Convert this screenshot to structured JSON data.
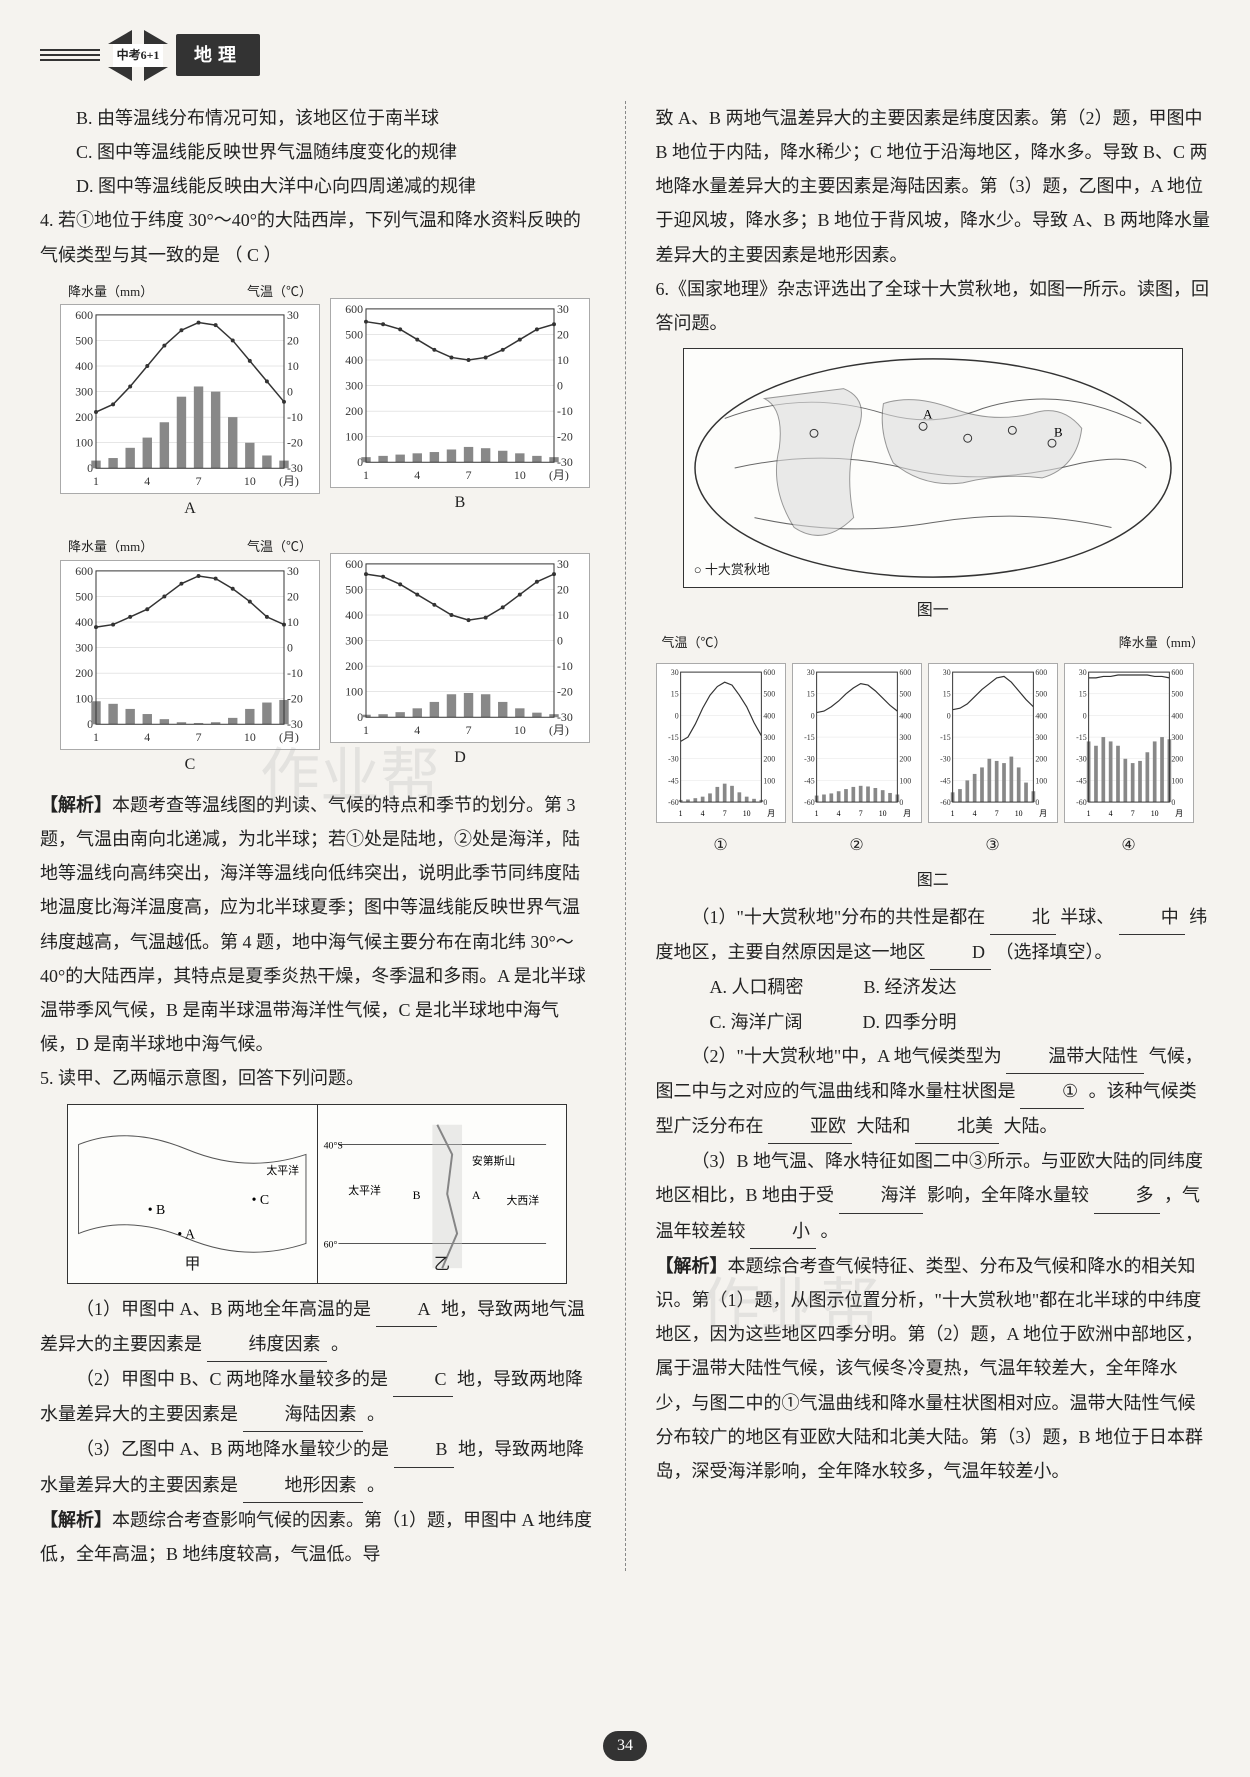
{
  "header": {
    "logo_text": "中考6+1",
    "subject": "地理"
  },
  "left": {
    "optB": "B. 由等温线分布情况可知，该地区位于南半球",
    "optC": "C. 图中等温线能反映世界气温随纬度变化的规律",
    "optD": "D. 图中等温线能反映由大洋中心向四周递减的规律",
    "q4": "4. 若①地位于纬度 30°～40°的大陆西岸，下列气温和降水资料反映的气候类型与其一致的是",
    "q4_answer": "（ C ）",
    "charts": {
      "precip_label": "降水量（mm）",
      "temp_label": "气温（℃）",
      "month_label": "月",
      "y_precip": [
        0,
        100,
        200,
        300,
        400,
        500,
        600
      ],
      "y_temp": [
        -30,
        -20,
        -10,
        0,
        10,
        20,
        30
      ],
      "x_months": [
        1,
        4,
        7,
        10
      ],
      "labels": [
        "A",
        "B",
        "C",
        "D"
      ],
      "A": {
        "precip": [
          30,
          40,
          80,
          120,
          180,
          280,
          320,
          300,
          200,
          100,
          50,
          30
        ],
        "temp": [
          -8,
          -5,
          2,
          10,
          18,
          24,
          27,
          26,
          20,
          12,
          4,
          -4
        ]
      },
      "B": {
        "precip": [
          20,
          25,
          30,
          35,
          40,
          50,
          60,
          55,
          45,
          35,
          25,
          20
        ],
        "temp": [
          25,
          24,
          22,
          18,
          14,
          11,
          10,
          11,
          14,
          18,
          22,
          24
        ]
      },
      "C": {
        "precip": [
          90,
          80,
          60,
          40,
          20,
          8,
          5,
          8,
          25,
          60,
          85,
          95
        ],
        "temp": [
          8,
          9,
          12,
          15,
          20,
          25,
          28,
          27,
          23,
          18,
          12,
          9
        ]
      },
      "D": {
        "precip": [
          10,
          12,
          20,
          35,
          60,
          90,
          95,
          90,
          60,
          35,
          18,
          12
        ],
        "temp": [
          26,
          25,
          22,
          18,
          14,
          10,
          8,
          9,
          13,
          18,
          23,
          26
        ]
      },
      "colors": {
        "bar": "#888888",
        "line": "#333333",
        "grid": "#cccccc",
        "bg": "#ffffff"
      }
    },
    "analysis_label": "【解析】",
    "analysis4": "本题考查等温线图的判读、气候的特点和季节的划分。第 3 题，气温由南向北递减，为北半球；若①处是陆地，②处是海洋，陆地等温线向高纬突出，海洋等温线向低纬突出，说明此季节同纬度陆地温度比海洋温度高，应为北半球夏季；图中等温线能反映世界气温纬度越高，气温越低。第 4 题，地中海气候主要分布在南北纬 30°～40°的大陆西岸，其特点是夏季炎热干燥，冬季温和多雨。A 是北半球温带季风气候，B 是南半球温带海洋性气候，C 是北半球地中海气候，D 是南半球地中海气候。",
    "q5": "5. 读甲、乙两幅示意图，回答下列问题。",
    "map_jia": "甲",
    "map_yi": "乙",
    "q5_1": "（1）甲图中 A、B 两地全年高温的是",
    "q5_1_ans": "A",
    "q5_1_tail": "地，导致两地气温差异大的主要因素是",
    "q5_1_ans2": "纬度因素",
    "q5_1_period": "。",
    "q5_2": "（2）甲图中 B、C 两地降水量较多的是",
    "q5_2_ans": "C",
    "q5_2_tail": "地，导致两地降水量差异大的主要因素是",
    "q5_2_ans2": "海陆因素",
    "q5_2_period": "。",
    "q5_3": "（3）乙图中 A、B 两地降水量较少的是",
    "q5_3_ans": "B",
    "q5_3_tail": "地，导致两地降水量差异大的主要因素是",
    "q5_3_ans2": "地形因素",
    "q5_3_period": "。",
    "analysis5_label": "【解析】",
    "analysis5": "本题综合考查影响气候的因素。第（1）题，甲图中 A 地纬度低，全年高温；B 地纬度较高，气温低。导"
  },
  "right": {
    "cont5": "致 A、B 两地气温差异大的主要因素是纬度因素。第（2）题，甲图中 B 地位于内陆，降水稀少；C 地位于沿海地区，降水多。导致 B、C 两地降水量差异大的主要因素是海陆因素。第（3）题，乙图中，A 地位于迎风坡，降水多；B 地位于背风坡，降水少。导致 A、B 两地降水量差异大的主要因素是地形因素。",
    "q6": "6.《国家地理》杂志评选出了全球十大赏秋地，如图一所示。读图，回答问题。",
    "legend": "○ 十大赏秋地",
    "fig1": "图一",
    "tiny_axis": {
      "temp_label": "气温（℃）",
      "precip_label": "降水量（mm）",
      "temp_ticks": [
        -60,
        -45,
        -30,
        -15,
        0,
        15,
        30
      ],
      "precip_ticks": [
        0,
        100,
        200,
        300,
        400,
        500,
        600
      ],
      "months": [
        1,
        4,
        7,
        10
      ]
    },
    "tiny1": {
      "precip": [
        10,
        12,
        18,
        25,
        40,
        70,
        85,
        75,
        45,
        25,
        15,
        10
      ],
      "temp": [
        -18,
        -15,
        -6,
        5,
        14,
        20,
        23,
        21,
        14,
        6,
        -5,
        -14
      ]
    },
    "tiny2": {
      "precip": [
        30,
        35,
        40,
        50,
        60,
        70,
        75,
        72,
        65,
        55,
        42,
        35
      ],
      "temp": [
        2,
        3,
        6,
        10,
        15,
        19,
        22,
        21,
        17,
        12,
        7,
        3
      ]
    },
    "tiny3": {
      "precip": [
        45,
        60,
        100,
        130,
        160,
        200,
        190,
        180,
        210,
        160,
        90,
        50
      ],
      "temp": [
        4,
        5,
        8,
        13,
        18,
        22,
        26,
        27,
        23,
        17,
        11,
        6
      ]
    },
    "tiny4": {
      "precip": [
        280,
        260,
        300,
        280,
        260,
        200,
        180,
        190,
        230,
        280,
        300,
        290
      ],
      "temp": [
        26,
        26,
        27,
        27,
        28,
        28,
        28,
        28,
        28,
        27,
        27,
        26
      ]
    },
    "chart_nums": [
      "①",
      "②",
      "③",
      "④"
    ],
    "fig2": "图二",
    "q6_1a": "（1）\"十大赏秋地\"分布的共性是都在",
    "q6_1_ans1": "北",
    "q6_1b": "半球、",
    "q6_1_ans2": "中",
    "q6_1c": "纬度地区，主要自然原因是这一地区",
    "q6_1_ans3": "D",
    "q6_1d": "（选择填空）。",
    "q6_optA": "A. 人口稠密",
    "q6_optB": "B. 经济发达",
    "q6_optC": "C. 海洋广阔",
    "q6_optD": "D. 四季分明",
    "q6_2a": "（2）\"十大赏秋地\"中，A 地气候类型为",
    "q6_2_ans1": "温带大陆性",
    "q6_2b": "气候，图二中与之对应的气温曲线和降水量柱状图是",
    "q6_2_ans2": "①",
    "q6_2c": "。该种气候类型广泛分布在",
    "q6_2_ans3": "亚欧",
    "q6_2d": "大陆和",
    "q6_2_ans4": "北美",
    "q6_2e": "大陆。",
    "q6_3a": "（3）B 地气温、降水特征如图二中③所示。与亚欧大陆的同纬度地区相比，B 地由于受",
    "q6_3_ans1": "海洋",
    "q6_3b": "影响，全年降水量较",
    "q6_3_ans2": "多",
    "q6_3c": "，气温年较差较",
    "q6_3_ans3": "小",
    "q6_3d": "。",
    "analysis6_label": "【解析】",
    "analysis6": "本题综合考查气候特征、类型、分布及气候和降水的相关知识。第（1）题，从图示位置分析，\"十大赏秋地\"都在北半球的中纬度地区，因为这些地区四季分明。第（2）题，A 地位于欧洲中部地区，属于温带大陆性气候，该气候冬冷夏热，气温年较差大，全年降水少，与图二中的①气温曲线和降水量柱状图相对应。温带大陆性气候分布较广的地区有亚欧大陆和北美大陆。第（3）题，B 地位于日本群岛，深受海洋影响，全年降水较多，气温年较差小。"
  },
  "page_number": "34",
  "watermarks": [
    "作业帮",
    "作业帮"
  ]
}
